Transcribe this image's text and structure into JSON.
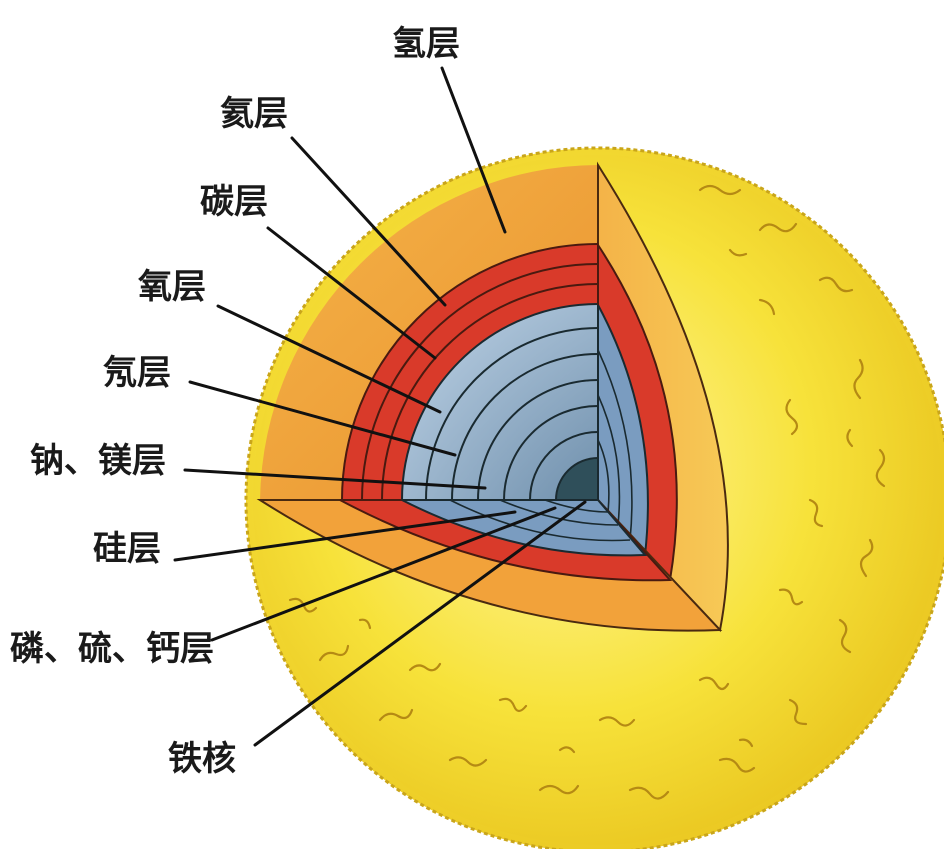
{
  "labels": {
    "hydrogen": "氢层",
    "helium": "氦层",
    "carbon": "碳层",
    "oxygen": "氧层",
    "neon": "氖层",
    "sodium_magnesium": "钠、镁层",
    "silicon": "硅层",
    "phosphorus_sulfur_calcium": "磷、硫、钙层",
    "iron_core": "铁核"
  },
  "colors": {
    "outer_yellow": "#f7e23a",
    "hydrogen_orange": "#f2a23a",
    "helium_red": "#d93a2a",
    "inner_blue": "#7a9cc0",
    "core_dark": "#2f4f5a"
  }
}
